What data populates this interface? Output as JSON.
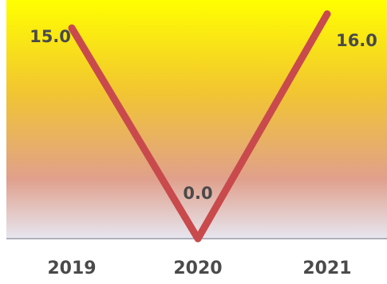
{
  "chart_data": {
    "type": "line",
    "title": "",
    "xlabel": "",
    "ylabel": "",
    "categories": [
      "2019",
      "2020",
      "2021"
    ],
    "series": [
      {
        "values": [
          15.0,
          0.0,
          16.0
        ],
        "labels": [
          "15.0",
          "0.0",
          "16.0"
        ]
      }
    ],
    "ylim": [
      0,
      17
    ],
    "grid": false,
    "legend": "none",
    "colors": {
      "line": "#c94a4c",
      "bg_top": "#ffff00",
      "bg_mid": "#e0a08c",
      "bg_bottom": "#e6e6f0",
      "axis": "#9a9aa8",
      "label": "#4a4a4a"
    }
  }
}
